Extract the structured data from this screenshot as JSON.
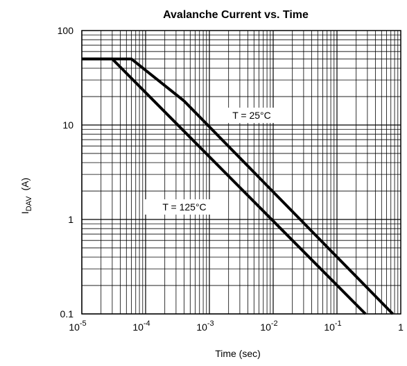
{
  "chart_data": {
    "type": "line",
    "title": "Avalanche Current vs. Time",
    "xlabel": "Time (sec)",
    "ylabel": {
      "main": "I",
      "sub": "DAV",
      "unit": "(A)"
    },
    "xscale": "log",
    "yscale": "log",
    "xlim": [
      1e-05,
      1
    ],
    "ylim": [
      0.1,
      100
    ],
    "grid": true,
    "x_ticks": [
      {
        "value": 1e-05,
        "base": "10",
        "exp": "-5"
      },
      {
        "value": 0.0001,
        "base": "10",
        "exp": "-4"
      },
      {
        "value": 0.001,
        "base": "10",
        "exp": "-3"
      },
      {
        "value": 0.01,
        "base": "10",
        "exp": "-2"
      },
      {
        "value": 0.1,
        "base": "10",
        "exp": "-1"
      },
      {
        "value": 1,
        "base": "1",
        "exp": ""
      }
    ],
    "y_ticks": [
      {
        "value": 100,
        "label": "100"
      },
      {
        "value": 10,
        "label": "10"
      },
      {
        "value": 1,
        "label": "1"
      },
      {
        "value": 0.1,
        "label": "0.1"
      }
    ],
    "series": [
      {
        "name": "T = 25°C",
        "x": [
          1e-05,
          6e-05,
          0.0004,
          0.75
        ],
        "y": [
          50,
          50,
          18,
          0.1
        ]
      },
      {
        "name": "T = 125°C",
        "x": [
          1e-05,
          3e-05,
          0.28
        ],
        "y": [
          50,
          50,
          0.1
        ]
      }
    ]
  }
}
